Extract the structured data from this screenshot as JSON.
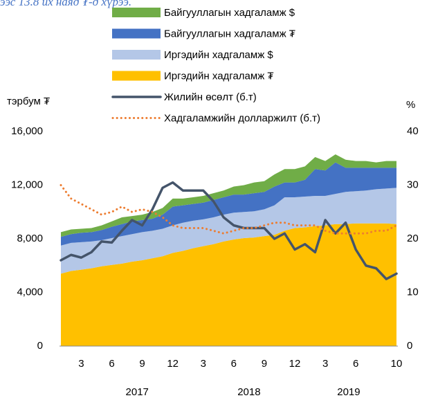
{
  "chart_data": {
    "type": "area",
    "note": "ээс 13.8 их наяд ₮-д хүрээ.",
    "ylabel": "тэрбум ₮",
    "y2label": "%",
    "categories": [
      null,
      null,
      "3",
      null,
      null,
      "6",
      null,
      null,
      "9",
      null,
      null,
      "12",
      null,
      null,
      "3",
      null,
      null,
      "6",
      null,
      null,
      "9",
      null,
      null,
      "12",
      null,
      null,
      "3",
      null,
      null,
      "6",
      null,
      null,
      null,
      "10"
    ],
    "years": [
      "2017",
      "2018",
      "2019"
    ],
    "ylim": [
      0,
      16000
    ],
    "yticks": [
      0,
      {
        "value": 4000,
        "label": "4,000"
      },
      {
        "value": 8000,
        "label": "8,000"
      },
      {
        "value": 12000,
        "label": "12,000"
      },
      {
        "value": 16000,
        "label": "16,000"
      }
    ],
    "y2lim": [
      0,
      40
    ],
    "y2ticks": [
      0,
      10,
      20,
      30,
      40
    ],
    "grid": false,
    "series": [
      {
        "name": "Иргэдийн хадгаламж ₮",
        "color": "#ffc000",
        "values": [
          5400,
          5600,
          5700,
          5800,
          5950,
          6050,
          6150,
          6300,
          6400,
          6550,
          6700,
          6950,
          7100,
          7300,
          7450,
          7600,
          7800,
          7950,
          8050,
          8100,
          8200,
          8300,
          8600,
          8800,
          8850,
          8950,
          9000,
          9100,
          9100,
          9150,
          9150,
          9150,
          9150,
          9100
        ]
      },
      {
        "name": "Иргэдийн хадгаламж $",
        "color": "#b4c7e7",
        "values": [
          2100,
          2100,
          2050,
          2000,
          1950,
          2000,
          2050,
          2050,
          2100,
          2050,
          2050,
          2050,
          2100,
          2050,
          2000,
          2000,
          2000,
          2000,
          1950,
          1950,
          2000,
          2200,
          2500,
          2300,
          2300,
          2250,
          2200,
          2250,
          2400,
          2400,
          2450,
          2550,
          2600,
          2700
        ]
      },
      {
        "name": "Байгууллагын хадгаламж ₮",
        "color": "#4472c4",
        "values": [
          650,
          650,
          700,
          700,
          750,
          850,
          900,
          950,
          900,
          900,
          1050,
          1400,
          1300,
          1250,
          1250,
          1300,
          1300,
          1350,
          1300,
          1350,
          1300,
          1400,
          1100,
          1100,
          1250,
          2000,
          1900,
          2350,
          1800,
          1750,
          1700,
          1600,
          1550,
          1500
        ]
      },
      {
        "name": "Байгууллагын хадгаламж $",
        "color": "#70ad47",
        "values": [
          350,
          350,
          300,
          300,
          350,
          400,
          500,
          400,
          400,
          500,
          500,
          600,
          500,
          500,
          500,
          500,
          500,
          600,
          700,
          800,
          800,
          900,
          1000,
          1000,
          1000,
          900,
          700,
          600,
          600,
          500,
          500,
          400,
          500,
          500
        ]
      },
      {
        "name": "Жилийн өсөлт (б.т)",
        "color": "#44546a",
        "type": "line",
        "axis": "y2",
        "values": [
          16,
          17,
          16.5,
          17.5,
          19.5,
          19.3,
          21.5,
          23.5,
          22.5,
          25.5,
          29.5,
          30.5,
          29,
          29,
          29,
          27,
          24,
          22.5,
          22,
          22,
          22,
          20,
          21,
          18,
          19,
          17.5,
          23.5,
          21,
          23,
          18,
          15,
          14.5,
          12.5,
          13.5
        ]
      },
      {
        "name": "Хадгаламжийн долларжилт (б.т)",
        "color": "#ed7d31",
        "type": "line",
        "axis": "y2",
        "dotted": true,
        "values": [
          30,
          27.5,
          26.5,
          25.5,
          24.5,
          25,
          26,
          25,
          25.5,
          25,
          24,
          22.5,
          22,
          22,
          22,
          21.5,
          21,
          21.5,
          22,
          22,
          22.5,
          23,
          23,
          22.5,
          22.5,
          22.5,
          21.5,
          21,
          21,
          21,
          21,
          21.5,
          21.5,
          22.5
        ]
      }
    ]
  }
}
